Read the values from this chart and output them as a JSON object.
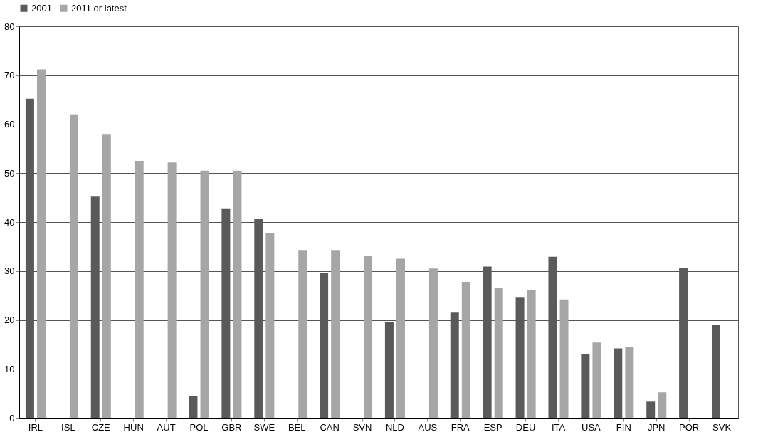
{
  "chart_data": {
    "type": "bar",
    "categories": [
      "IRL",
      "ISL",
      "CZE",
      "HUN",
      "AUT",
      "POL",
      "GBR",
      "SWE",
      "BEL",
      "CAN",
      "SVN",
      "NLD",
      "AUS",
      "FRA",
      "ESP",
      "DEU",
      "ITA",
      "USA",
      "FIN",
      "JPN",
      "POR",
      "SVK"
    ],
    "series": [
      {
        "name": "2001",
        "color": "#5a5a5a",
        "values": [
          65.2,
          null,
          45.2,
          null,
          null,
          4.5,
          42.8,
          40.6,
          null,
          29.6,
          null,
          19.6,
          null,
          21.5,
          30.9,
          24.7,
          32.9,
          13.1,
          14.2,
          3.3,
          30.7,
          19.0
        ]
      },
      {
        "name": "2011 or latest",
        "color": "#a6a6a6",
        "values": [
          71.2,
          62.0,
          58.0,
          52.5,
          52.2,
          50.5,
          50.5,
          37.8,
          34.3,
          34.3,
          33.1,
          32.5,
          30.5,
          27.8,
          26.6,
          26.1,
          24.2,
          15.4,
          14.5,
          5.2,
          null,
          null
        ]
      }
    ],
    "ylim": [
      0,
      80
    ],
    "yticks": [
      0,
      10,
      20,
      30,
      40,
      50,
      60,
      70,
      80
    ],
    "grid": "y",
    "legend": "top"
  }
}
